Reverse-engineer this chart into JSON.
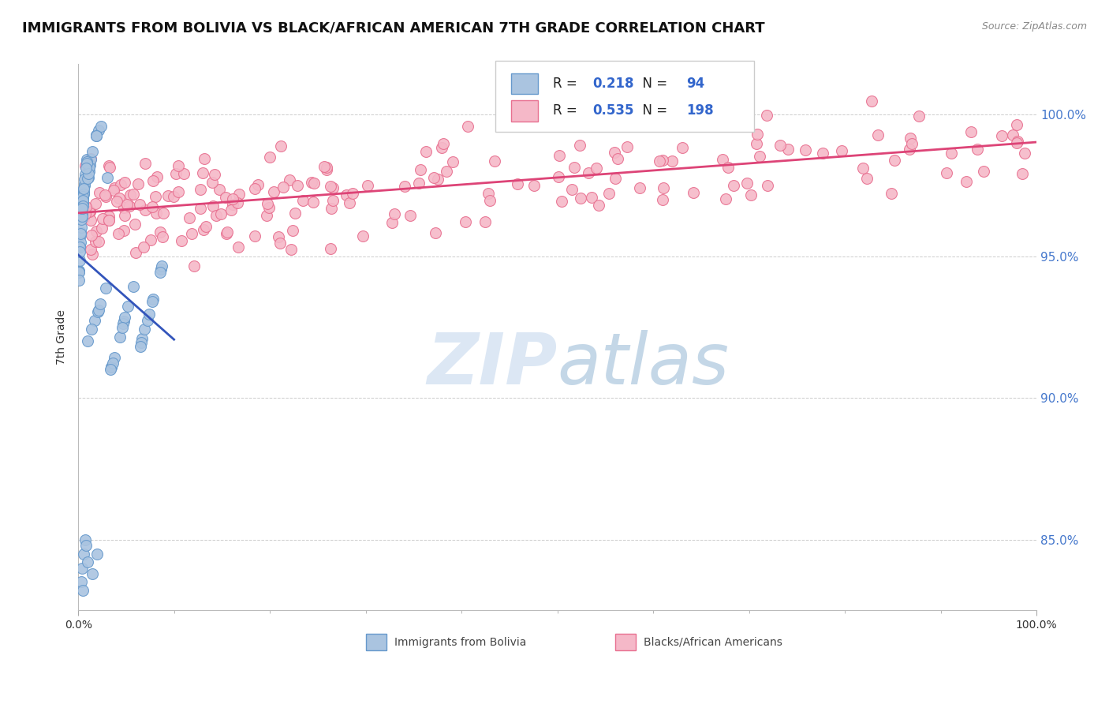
{
  "title": "IMMIGRANTS FROM BOLIVIA VS BLACK/AFRICAN AMERICAN 7TH GRADE CORRELATION CHART",
  "source": "Source: ZipAtlas.com",
  "ylabel": "7th Grade",
  "watermark_zip": "ZIP",
  "watermark_atlas": "atlas",
  "xlim": [
    0.0,
    100.0
  ],
  "ylim": [
    82.5,
    101.8
  ],
  "ytick_values": [
    85.0,
    90.0,
    95.0,
    100.0
  ],
  "ytick_labels": [
    "85.0%",
    "90.0%",
    "95.0%",
    "100.0%"
  ],
  "series1_color": "#aac4e0",
  "series1_edge": "#6699cc",
  "series2_color": "#f5b8c8",
  "series2_edge": "#e87090",
  "line1_color": "#3355bb",
  "line2_color": "#dd4477",
  "R1": "0.218",
  "N1": "94",
  "R2": "0.535",
  "N2": "198",
  "legend_label1": "Immigrants from Bolivia",
  "legend_label2": "Blacks/African Americans",
  "title_fontsize": 13,
  "tick_color": "#4477cc",
  "label_color": "#333333",
  "background_color": "#ffffff",
  "grid_color": "#cccccc",
  "marker_size": 100
}
